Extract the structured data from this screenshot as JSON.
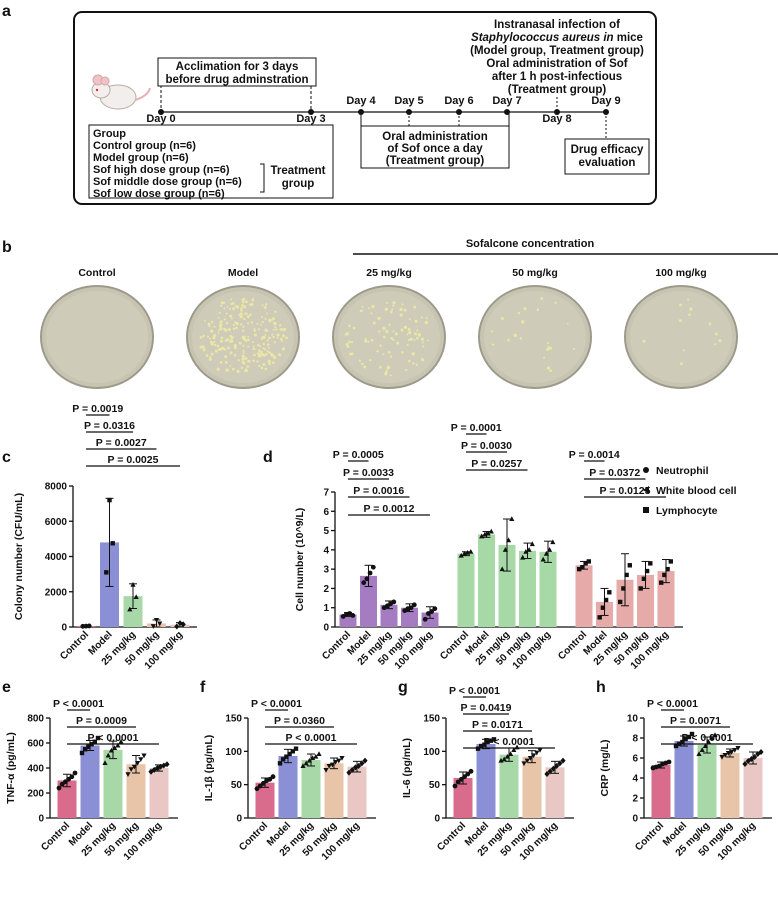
{
  "panel_labels": [
    "a",
    "b",
    "c",
    "d",
    "e",
    "f",
    "g",
    "h"
  ],
  "timeline": {
    "days": [
      "Day 0",
      "Day 3",
      "Day 4",
      "Day 5",
      "Day 6",
      "Day 7",
      "Day 8",
      "Day 9"
    ],
    "acclimation": [
      "Acclimation for 3 days",
      "before drug adminstration"
    ],
    "infection": {
      "line1": "Instranasal infection of",
      "line2_italic": "Staphylococcus aureus in",
      "line2_rest": " mice",
      "line3": "(Model group, Treatment group)",
      "line4": "Oral administration of Sof",
      "line5": "after 1 h post-infectious",
      "line6": "(Treatment group)"
    },
    "groups": [
      "Group",
      "Control group (n=6)",
      "Model group (n=6)",
      "Sof high dose group (n=6)",
      "Sof middle dose group (n=6)",
      "Sof low dose group (n=6)"
    ],
    "treatment_group": [
      "Treatment",
      "group"
    ],
    "oral_admin": [
      "Oral administration",
      "of Sof once a day",
      "(Treatment group)"
    ],
    "efficacy": [
      "Drug efficacy",
      "evaluation"
    ]
  },
  "plates": {
    "header": "Sofalcone concentration",
    "labels": [
      "Control",
      "Model",
      "25 mg/kg",
      "50 mg/kg",
      "100 mg/kg"
    ],
    "colony_density": [
      0,
      0.9,
      0.35,
      0.08,
      0.05
    ]
  },
  "colors": {
    "control": "#d96b8c",
    "model": "#8b8fd6",
    "d25": "#a8d8a8",
    "d50": "#e8c4a8",
    "d100": "#e8c7c4",
    "purple": "#a57bc2",
    "green": "#a6d9a6",
    "pink": "#e6aaa8"
  },
  "chart_data": [
    {
      "id": "c",
      "type": "bar",
      "categories": [
        "Control",
        "Model",
        "25 mg/kg",
        "50 mg/kg",
        "100 mg/kg"
      ],
      "values": [
        50,
        4800,
        1750,
        200,
        130
      ],
      "errors": [
        30,
        2500,
        700,
        200,
        120
      ],
      "points": [
        [
          40,
          50,
          60
        ],
        [
          3100,
          7200,
          4750
        ],
        [
          1000,
          2400,
          1700
        ],
        [
          50,
          400,
          200
        ],
        [
          30,
          220,
          150
        ]
      ],
      "ylabel": "Colony number (CFU/mL)",
      "ylim": [
        0,
        8000
      ],
      "yticks": [
        0,
        2000,
        4000,
        6000,
        8000
      ],
      "pvalues": [
        "P = 0.0019",
        "P = 0.0316",
        "P = 0.0027",
        "P = 0.0025"
      ]
    },
    {
      "id": "d",
      "type": "bar",
      "categories": [
        "Control",
        "Model",
        "25 mg/kg",
        "50 mg/kg",
        "100 mg/kg"
      ],
      "ylabel": "Cell number (10^9/L)",
      "ylim": [
        0,
        7
      ],
      "yticks": [
        0,
        1,
        2,
        3,
        4,
        5,
        6,
        7
      ],
      "series": [
        {
          "name": "Neutrophil",
          "values": [
            0.65,
            2.65,
            1.15,
            1.0,
            0.75
          ],
          "errors": [
            0.1,
            0.55,
            0.2,
            0.2,
            0.3
          ],
          "points": [
            [
              0.55,
              0.65,
              0.7,
              0.6
            ],
            [
              2.3,
              2.5,
              2.8,
              3.1
            ],
            [
              1.0,
              1.1,
              1.2,
              1.3
            ],
            [
              0.85,
              0.95,
              1.0,
              1.15
            ],
            [
              0.4,
              0.7,
              0.8,
              0.95
            ]
          ],
          "pvalues": [
            "P = 0.0005",
            "P = 0.0033",
            "P = 0.0016",
            "P = 0.0012"
          ]
        },
        {
          "name": "White blood cell",
          "values": [
            3.8,
            4.8,
            4.25,
            3.95,
            3.9
          ],
          "errors": [
            0.1,
            0.15,
            1.35,
            0.4,
            0.55
          ],
          "points": [
            [
              3.7,
              3.8,
              3.85,
              3.9
            ],
            [
              4.7,
              4.8,
              4.85,
              4.95
            ],
            [
              3.0,
              4.0,
              4.5,
              5.6
            ],
            [
              3.6,
              3.9,
              4.0,
              4.3
            ],
            [
              3.5,
              3.8,
              4.0,
              4.4
            ]
          ],
          "pvalues": [
            "P = 0.0001",
            "P = 0.0030",
            "P = 0.0257"
          ]
        },
        {
          "name": "Lymphocyte",
          "values": [
            3.2,
            1.3,
            2.45,
            2.7,
            2.9
          ],
          "errors": [
            0.2,
            0.7,
            1.35,
            0.7,
            0.6
          ],
          "points": [
            [
              3.0,
              3.1,
              3.3,
              3.4
            ],
            [
              0.5,
              1.0,
              1.4,
              1.8
            ],
            [
              1.3,
              2.0,
              2.7,
              3.2
            ],
            [
              2.0,
              2.5,
              2.9,
              3.3
            ],
            [
              2.3,
              2.7,
              3.0,
              3.4
            ]
          ],
          "pvalues": [
            "P = 0.0014",
            "P = 0.0372",
            "P = 0.0125"
          ]
        }
      ]
    },
    {
      "id": "e",
      "type": "bar",
      "categories": [
        "Control",
        "Model",
        "25 mg/kg",
        "50 mg/kg",
        "100 mg/kg"
      ],
      "values": [
        300,
        580,
        545,
        430,
        400
      ],
      "errors": [
        50,
        40,
        70,
        70,
        25
      ],
      "points": [
        [
          240,
          270,
          290,
          310,
          330,
          360
        ],
        [
          520,
          550,
          570,
          590,
          610,
          640
        ],
        [
          440,
          500,
          540,
          560,
          580,
          610
        ],
        [
          350,
          390,
          410,
          440,
          470,
          500
        ],
        [
          370,
          385,
          400,
          410,
          420,
          430
        ]
      ],
      "ylabel": "TNF-α (pg/mL)",
      "ylim": [
        0,
        800
      ],
      "yticks": [
        0,
        200,
        400,
        600,
        800
      ],
      "pvalues": [
        "P < 0.0001",
        "P = 0.0009",
        "P < 0.0001"
      ]
    },
    {
      "id": "f",
      "type": "bar",
      "categories": [
        "Control",
        "Model",
        "25 mg/kg",
        "50 mg/kg",
        "100 mg/kg"
      ],
      "values": [
        53,
        93,
        87,
        82,
        77
      ],
      "errors": [
        7,
        10,
        9,
        8,
        8
      ],
      "points": [
        [
          44,
          48,
          52,
          56,
          58,
          62
        ],
        [
          82,
          88,
          92,
          96,
          100,
          104
        ],
        [
          78,
          82,
          86,
          90,
          92,
          96
        ],
        [
          72,
          78,
          80,
          84,
          86,
          90
        ],
        [
          68,
          72,
          76,
          78,
          82,
          86
        ]
      ],
      "ylabel": "IL-1β (pg/mL)",
      "ylim": [
        0,
        150
      ],
      "yticks": [
        0,
        50,
        100,
        150
      ],
      "pvalues": [
        "P < 0.0001",
        "P = 0.0360",
        "P < 0.0001"
      ]
    },
    {
      "id": "g",
      "type": "bar",
      "categories": [
        "Control",
        "Model",
        "25 mg/kg",
        "50 mg/kg",
        "100 mg/kg"
      ],
      "values": [
        60,
        111,
        95,
        92,
        76
      ],
      "errors": [
        9,
        7,
        10,
        9,
        9
      ],
      "points": [
        [
          48,
          54,
          58,
          62,
          66,
          70
        ],
        [
          104,
          108,
          110,
          114,
          116,
          118
        ],
        [
          86,
          88,
          92,
          96,
          102,
          106
        ],
        [
          82,
          86,
          90,
          94,
          98,
          102
        ],
        [
          66,
          70,
          74,
          78,
          82,
          86
        ]
      ],
      "ylabel": "IL-6 (pg/mL)",
      "ylim": [
        0,
        150
      ],
      "yticks": [
        0,
        50,
        100,
        150
      ],
      "pvalues": [
        "P < 0.0001",
        "P = 0.0419",
        "P = 0.0171",
        "P < 0.0001"
      ]
    },
    {
      "id": "h",
      "type": "bar",
      "categories": [
        "Control",
        "Model",
        "25 mg/kg",
        "50 mg/kg",
        "100 mg/kg"
      ],
      "values": [
        5.3,
        7.7,
        7.3,
        6.5,
        6.0
      ],
      "errors": [
        0.3,
        0.5,
        0.8,
        0.4,
        0.6
      ],
      "points": [
        [
          5.0,
          5.1,
          5.2,
          5.4,
          5.5,
          5.6
        ],
        [
          7.2,
          7.4,
          7.6,
          7.9,
          8.1,
          8.4
        ],
        [
          6.4,
          6.8,
          7.2,
          7.6,
          8.0,
          8.3
        ],
        [
          6.1,
          6.3,
          6.5,
          6.6,
          6.8,
          7.0
        ],
        [
          5.4,
          5.7,
          5.9,
          6.1,
          6.4,
          6.6
        ]
      ],
      "ylabel": "CRP (mg/L)",
      "ylim": [
        0,
        10
      ],
      "yticks": [
        0,
        2,
        4,
        6,
        8,
        10
      ],
      "pvalues": [
        "P < 0.0001",
        "P = 0.0071",
        "P < 0.0001"
      ]
    }
  ]
}
